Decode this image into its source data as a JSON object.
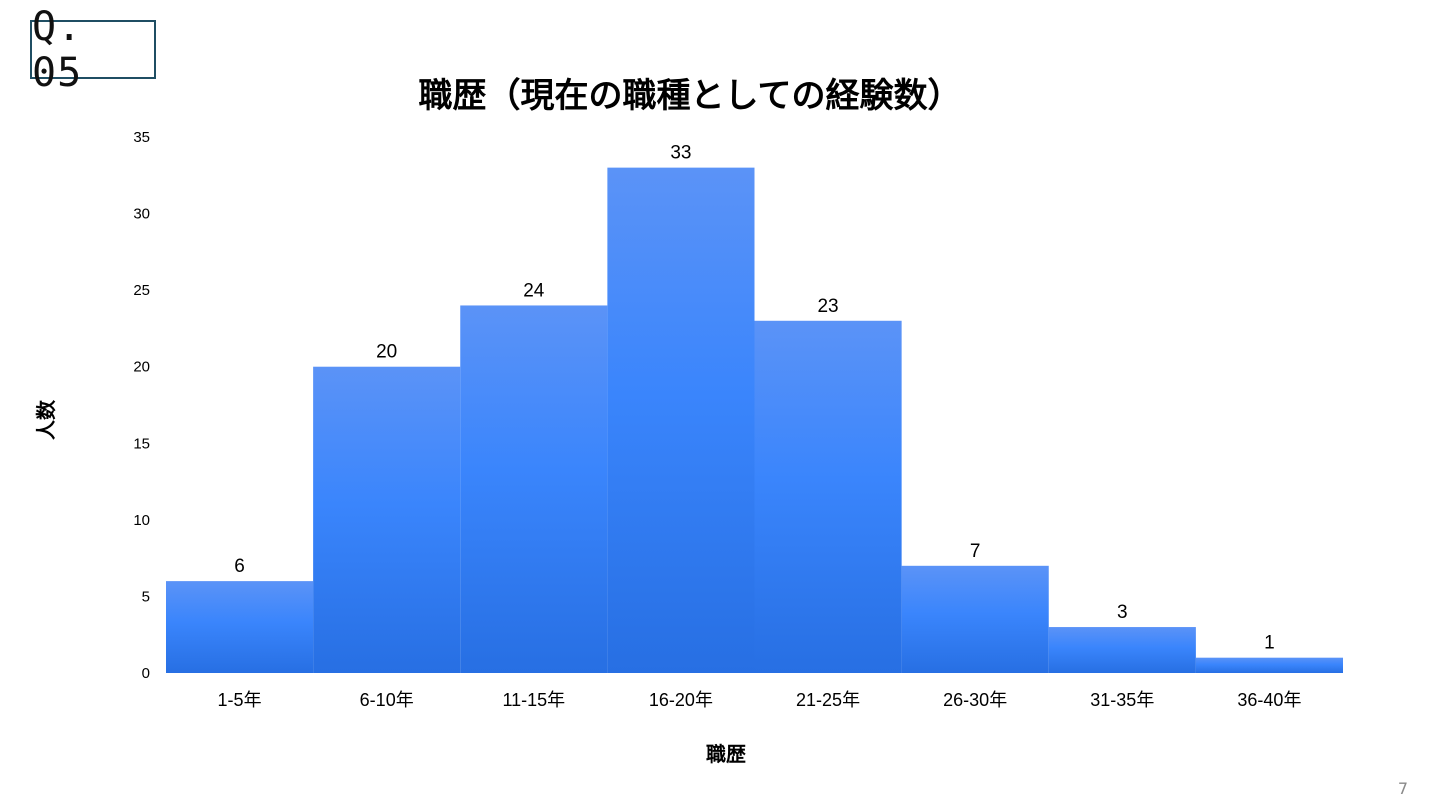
{
  "badge": {
    "label": "Q. 05"
  },
  "page_number": "7",
  "colors": {
    "bar_top": "#5b93f7",
    "bar_mid": "#3a85fc",
    "bar_bottom": "#276fe3",
    "badge_border": "#1f4e63"
  },
  "chart_data": {
    "type": "bar",
    "title": "職歴（現在の職種としての経験数）",
    "xlabel": "職歴",
    "ylabel": "人数",
    "categories": [
      "1-5年",
      "6-10年",
      "11-15年",
      "16-20年",
      "21-25年",
      "26-30年",
      "31-35年",
      "36-40年"
    ],
    "values": [
      6,
      20,
      24,
      33,
      23,
      7,
      3,
      1
    ],
    "ylim": [
      0,
      35
    ],
    "yticks": [
      "0",
      "5",
      "10",
      "15",
      "20",
      "25",
      "30",
      "35"
    ],
    "data_labels": [
      "6",
      "20",
      "24",
      "33",
      "23",
      "7",
      "3",
      "1"
    ],
    "grid": false,
    "legend": "none"
  }
}
